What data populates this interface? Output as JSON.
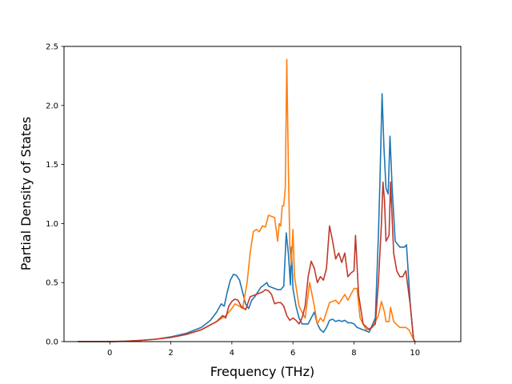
{
  "chart_data": {
    "type": "line",
    "xlabel": "Frequency (THz)",
    "ylabel": "Partial Density of States",
    "xlim": [
      -1.5,
      11.5
    ],
    "ylim": [
      0,
      2.5
    ],
    "grid": false,
    "x_ticks": [
      0,
      2,
      4,
      6,
      8,
      10
    ],
    "x_tick_labels": [
      "0",
      "2",
      "4",
      "6",
      "8",
      "10"
    ],
    "y_ticks": [
      0,
      0.5,
      1.0,
      1.5,
      2.0,
      2.5
    ],
    "y_tick_labels": [
      "0.0",
      "0.5",
      "1.0",
      "1.5",
      "2.0",
      "2.5"
    ],
    "series": [
      {
        "color": "#1f77b4",
        "points": [
          [
            -1.05,
            0
          ],
          [
            0,
            0
          ],
          [
            0.5,
            0.003
          ],
          [
            1,
            0.01
          ],
          [
            1.5,
            0.02
          ],
          [
            2,
            0.04
          ],
          [
            2.5,
            0.07
          ],
          [
            3,
            0.12
          ],
          [
            3.3,
            0.18
          ],
          [
            3.5,
            0.25
          ],
          [
            3.65,
            0.32
          ],
          [
            3.75,
            0.3
          ],
          [
            3.85,
            0.42
          ],
          [
            3.95,
            0.52
          ],
          [
            4.05,
            0.57
          ],
          [
            4.15,
            0.56
          ],
          [
            4.25,
            0.52
          ],
          [
            4.35,
            0.42
          ],
          [
            4.45,
            0.32
          ],
          [
            4.55,
            0.28
          ],
          [
            4.65,
            0.35
          ],
          [
            4.75,
            0.38
          ],
          [
            4.85,
            0.42
          ],
          [
            4.95,
            0.46
          ],
          [
            5.05,
            0.48
          ],
          [
            5.15,
            0.5
          ],
          [
            5.2,
            0.47
          ],
          [
            5.3,
            0.46
          ],
          [
            5.4,
            0.45
          ],
          [
            5.5,
            0.44
          ],
          [
            5.6,
            0.44
          ],
          [
            5.7,
            0.47
          ],
          [
            5.78,
            0.92
          ],
          [
            5.85,
            0.75
          ],
          [
            5.92,
            0.48
          ],
          [
            5.95,
            0.8
          ],
          [
            6.0,
            0.45
          ],
          [
            6.1,
            0.3
          ],
          [
            6.2,
            0.2
          ],
          [
            6.3,
            0.15
          ],
          [
            6.5,
            0.15
          ],
          [
            6.6,
            0.2
          ],
          [
            6.7,
            0.25
          ],
          [
            6.8,
            0.15
          ],
          [
            6.9,
            0.1
          ],
          [
            7.0,
            0.08
          ],
          [
            7.1,
            0.12
          ],
          [
            7.2,
            0.18
          ],
          [
            7.3,
            0.19
          ],
          [
            7.4,
            0.17
          ],
          [
            7.5,
            0.18
          ],
          [
            7.6,
            0.17
          ],
          [
            7.7,
            0.18
          ],
          [
            7.8,
            0.16
          ],
          [
            7.9,
            0.16
          ],
          [
            8.0,
            0.15
          ],
          [
            8.1,
            0.12
          ],
          [
            8.3,
            0.1
          ],
          [
            8.5,
            0.08
          ],
          [
            8.7,
            0.2
          ],
          [
            8.8,
            0.9
          ],
          [
            8.85,
            1.35
          ],
          [
            8.92,
            2.1
          ],
          [
            8.98,
            1.65
          ],
          [
            9.05,
            1.3
          ],
          [
            9.12,
            1.25
          ],
          [
            9.18,
            1.74
          ],
          [
            9.25,
            1.3
          ],
          [
            9.35,
            0.85
          ],
          [
            9.5,
            0.8
          ],
          [
            9.65,
            0.8
          ],
          [
            9.72,
            0.82
          ],
          [
            9.85,
            0.3
          ],
          [
            9.95,
            0.02
          ],
          [
            10.0,
            0
          ]
        ]
      },
      {
        "color": "#ff7f0e",
        "points": [
          [
            -1.05,
            0
          ],
          [
            0,
            0
          ],
          [
            0.5,
            0.003
          ],
          [
            1,
            0.01
          ],
          [
            1.5,
            0.02
          ],
          [
            2,
            0.035
          ],
          [
            2.5,
            0.06
          ],
          [
            3,
            0.1
          ],
          [
            3.5,
            0.17
          ],
          [
            3.8,
            0.22
          ],
          [
            4,
            0.28
          ],
          [
            4.1,
            0.32
          ],
          [
            4.25,
            0.3
          ],
          [
            4.35,
            0.28
          ],
          [
            4.5,
            0.5
          ],
          [
            4.6,
            0.75
          ],
          [
            4.7,
            0.93
          ],
          [
            4.8,
            0.95
          ],
          [
            4.9,
            0.93
          ],
          [
            5.0,
            0.98
          ],
          [
            5.1,
            0.97
          ],
          [
            5.2,
            1.07
          ],
          [
            5.3,
            1.06
          ],
          [
            5.4,
            1.05
          ],
          [
            5.5,
            0.85
          ],
          [
            5.55,
            1.0
          ],
          [
            5.6,
            0.98
          ],
          [
            5.65,
            1.15
          ],
          [
            5.7,
            1.15
          ],
          [
            5.75,
            1.3
          ],
          [
            5.8,
            2.39
          ],
          [
            5.85,
            1.5
          ],
          [
            5.9,
            0.8
          ],
          [
            5.95,
            0.65
          ],
          [
            6.0,
            0.95
          ],
          [
            6.05,
            0.55
          ],
          [
            6.2,
            0.3
          ],
          [
            6.4,
            0.2
          ],
          [
            6.5,
            0.4
          ],
          [
            6.55,
            0.5
          ],
          [
            6.7,
            0.3
          ],
          [
            6.8,
            0.15
          ],
          [
            6.9,
            0.2
          ],
          [
            7.0,
            0.17
          ],
          [
            7.2,
            0.33
          ],
          [
            7.4,
            0.35
          ],
          [
            7.5,
            0.32
          ],
          [
            7.7,
            0.4
          ],
          [
            7.8,
            0.35
          ],
          [
            8.0,
            0.45
          ],
          [
            8.1,
            0.45
          ],
          [
            8.2,
            0.2
          ],
          [
            8.4,
            0.1
          ],
          [
            8.6,
            0.12
          ],
          [
            8.8,
            0.22
          ],
          [
            8.9,
            0.34
          ],
          [
            9.0,
            0.25
          ],
          [
            9.05,
            0.17
          ],
          [
            9.15,
            0.17
          ],
          [
            9.2,
            0.29
          ],
          [
            9.3,
            0.17
          ],
          [
            9.5,
            0.12
          ],
          [
            9.7,
            0.12
          ],
          [
            9.8,
            0.1
          ],
          [
            9.95,
            0.02
          ],
          [
            10.0,
            0
          ]
        ]
      },
      {
        "color": "#c0392b",
        "points": [
          [
            -1.05,
            0
          ],
          [
            0,
            0
          ],
          [
            0.5,
            0.003
          ],
          [
            1,
            0.01
          ],
          [
            1.5,
            0.02
          ],
          [
            2,
            0.035
          ],
          [
            2.5,
            0.06
          ],
          [
            3,
            0.1
          ],
          [
            3.5,
            0.17
          ],
          [
            3.7,
            0.22
          ],
          [
            3.8,
            0.2
          ],
          [
            3.9,
            0.3
          ],
          [
            4.0,
            0.34
          ],
          [
            4.1,
            0.36
          ],
          [
            4.2,
            0.35
          ],
          [
            4.3,
            0.3
          ],
          [
            4.45,
            0.27
          ],
          [
            4.6,
            0.38
          ],
          [
            4.8,
            0.4
          ],
          [
            5.0,
            0.42
          ],
          [
            5.1,
            0.44
          ],
          [
            5.2,
            0.43
          ],
          [
            5.3,
            0.4
          ],
          [
            5.4,
            0.32
          ],
          [
            5.5,
            0.33
          ],
          [
            5.6,
            0.33
          ],
          [
            5.7,
            0.3
          ],
          [
            5.8,
            0.22
          ],
          [
            5.9,
            0.18
          ],
          [
            6.0,
            0.2
          ],
          [
            6.1,
            0.18
          ],
          [
            6.2,
            0.15
          ],
          [
            6.3,
            0.2
          ],
          [
            6.4,
            0.3
          ],
          [
            6.5,
            0.55
          ],
          [
            6.6,
            0.68
          ],
          [
            6.7,
            0.62
          ],
          [
            6.8,
            0.5
          ],
          [
            6.9,
            0.55
          ],
          [
            7.0,
            0.52
          ],
          [
            7.1,
            0.62
          ],
          [
            7.2,
            0.98
          ],
          [
            7.3,
            0.85
          ],
          [
            7.4,
            0.7
          ],
          [
            7.5,
            0.75
          ],
          [
            7.6,
            0.67
          ],
          [
            7.7,
            0.75
          ],
          [
            7.8,
            0.55
          ],
          [
            7.9,
            0.58
          ],
          [
            8.0,
            0.6
          ],
          [
            8.05,
            0.9
          ],
          [
            8.15,
            0.4
          ],
          [
            8.3,
            0.15
          ],
          [
            8.5,
            0.1
          ],
          [
            8.7,
            0.15
          ],
          [
            8.8,
            0.5
          ],
          [
            8.9,
            1.0
          ],
          [
            8.95,
            1.35
          ],
          [
            9.0,
            1.2
          ],
          [
            9.05,
            0.85
          ],
          [
            9.15,
            0.9
          ],
          [
            9.2,
            1.35
          ],
          [
            9.3,
            0.75
          ],
          [
            9.4,
            0.6
          ],
          [
            9.5,
            0.55
          ],
          [
            9.6,
            0.55
          ],
          [
            9.7,
            0.6
          ],
          [
            9.85,
            0.3
          ],
          [
            9.95,
            0.02
          ],
          [
            10.0,
            0
          ]
        ]
      }
    ]
  }
}
